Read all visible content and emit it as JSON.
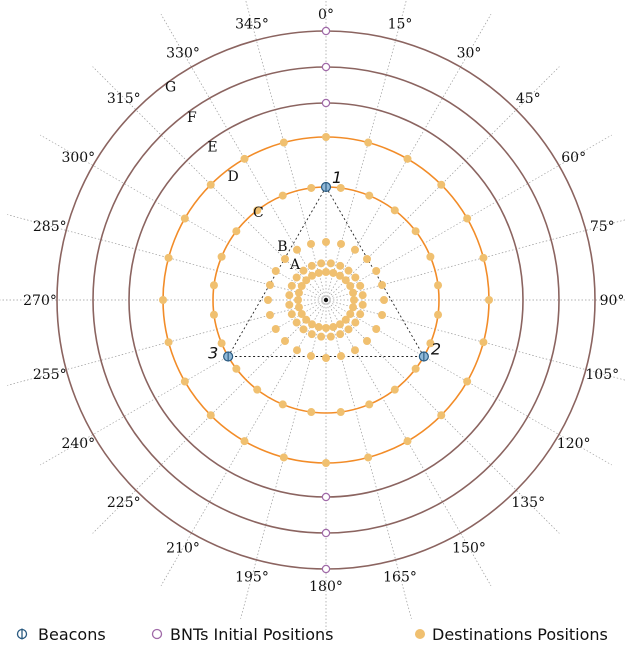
{
  "figure": {
    "angle_labels": [
      "0°",
      "15°",
      "30°",
      "45°",
      "60°",
      "75°",
      "90°",
      "105°",
      "120°",
      "135°",
      "150°",
      "165°",
      "180°",
      "195°",
      "210°",
      "225°",
      "240°",
      "255°",
      "270°",
      "285°",
      "300°",
      "315°",
      "330°",
      "345°"
    ],
    "ring_labels": [
      "A",
      "B",
      "C",
      "D",
      "E",
      "F",
      "G"
    ],
    "beacon_labels": [
      "1",
      "2",
      "3"
    ],
    "colors": {
      "orange_ring": "#f28c28",
      "brown_ring": "#8b6460",
      "dest_fill": "#f0c070",
      "bnt_stroke": "#a06aa8",
      "beacon_fill": "#8fb8d8",
      "beacon_stroke": "#2a5a80",
      "spoke": "#999999"
    }
  },
  "legend": {
    "beacons": "Beacons",
    "bnts": "BNTs Initial Positions",
    "destinations": "Destinations Positions"
  }
}
